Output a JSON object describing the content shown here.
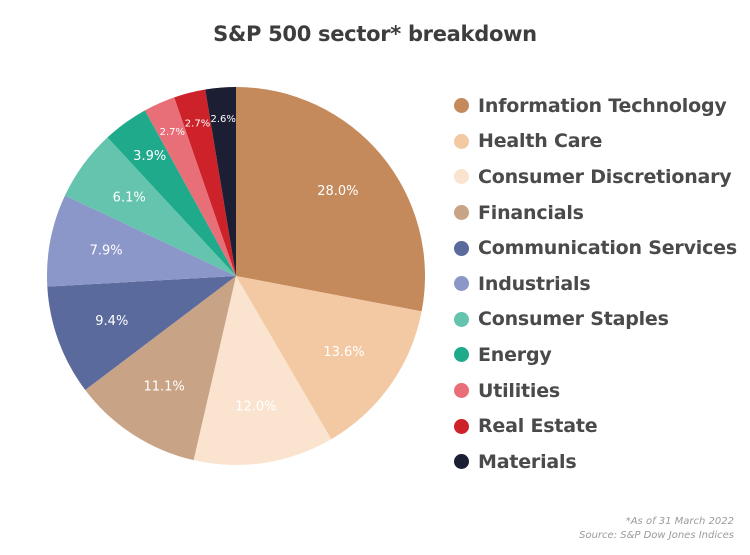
{
  "title": "S&P 500 sector* breakdown",
  "footnote": {
    "as_of": "*As of 31 March 2022",
    "source": "Source: S&P Dow Jones Indices"
  },
  "chart_data": {
    "type": "pie",
    "title": "S&P 500 sector* breakdown",
    "legend_position": "right",
    "start_angle": "12 o'clock, clockwise",
    "slices": [
      {
        "label": "Information Technology",
        "value": 28.0,
        "display": "28.0%",
        "color": "#c48a5c"
      },
      {
        "label": "Health Care",
        "value": 13.6,
        "display": "13.6%",
        "color": "#f3c9a4"
      },
      {
        "label": "Consumer Discretionary",
        "value": 12.0,
        "display": "12.0%",
        "color": "#fae4d0"
      },
      {
        "label": "Financials",
        "value": 11.1,
        "display": "11.1%",
        "color": "#c9a385"
      },
      {
        "label": "Communication Services",
        "value": 9.4,
        "display": "9.4%",
        "color": "#5b6a9c"
      },
      {
        "label": "Industrials",
        "value": 7.9,
        "display": "7.9%",
        "color": "#8b97c8"
      },
      {
        "label": "Consumer Staples",
        "value": 6.1,
        "display": "6.1%",
        "color": "#64c4ae"
      },
      {
        "label": "Energy",
        "value": 3.9,
        "display": "3.9%",
        "color": "#1faa8c"
      },
      {
        "label": "Utilities",
        "value": 2.7,
        "display": "2.7%",
        "color": "#e86f78"
      },
      {
        "label": "Real Estate",
        "value": 2.7,
        "display": "2.7%",
        "color": "#cd2229"
      },
      {
        "label": "Materials",
        "value": 2.6,
        "display": "2.6%",
        "color": "#1c1e33"
      }
    ]
  }
}
